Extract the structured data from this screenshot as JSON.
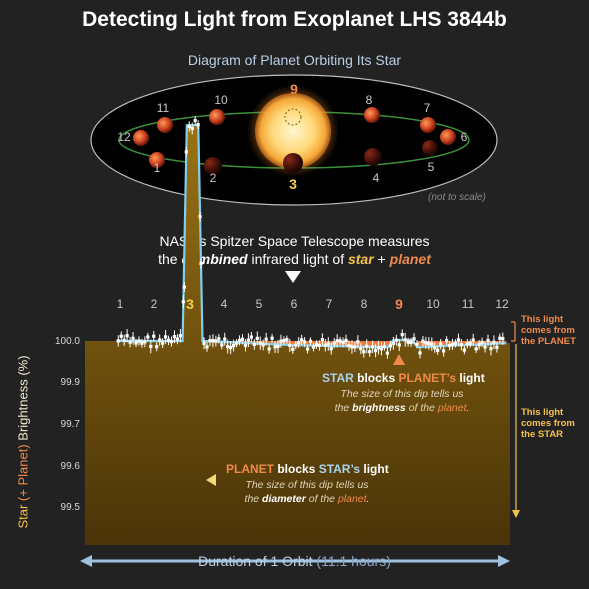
{
  "title": "Detecting Light from Exoplanet LHS 3844b",
  "subtitle": "Diagram of Planet Orbiting Its Star",
  "scale_note": "(not to scale)",
  "orbit_labels": [
    "1",
    "2",
    "3",
    "4",
    "5",
    "6",
    "7",
    "8",
    "9",
    "10",
    "11",
    "12"
  ],
  "spitzer": {
    "line1": "NASA’s Spitzer Space Telescope measures",
    "line2_prefix": "the ",
    "line2_em": "combined",
    "line2_mid": " infrared light of ",
    "line2_star": "star",
    "line2_plus": " + ",
    "line2_planet": "planet"
  },
  "chart": {
    "x_ticks": [
      "1",
      "2",
      "3",
      "4",
      "5",
      "6",
      "7",
      "8",
      "9",
      "10",
      "11",
      "12"
    ],
    "y_ticks": [
      "100.0",
      "99.9",
      "99.7",
      "99.6",
      "99.5"
    ],
    "ylabel_star": "Star ",
    "ylabel_planet": "(+ Planet)",
    "ylabel_rest": " Brightness ",
    "ylabel_unit": "(%)",
    "secondary_eclipse": {
      "head_a": "STAR",
      "head_b": " blocks ",
      "head_c": "PLANET’s",
      "head_d": " light",
      "body1": "The size of this dip tells us",
      "body2_a": "the ",
      "body2_b": "brightness",
      "body2_c": " of the ",
      "body2_d": "planet",
      "body2_e": "."
    },
    "transit": {
      "head_a": "PLANET",
      "head_b": " blocks ",
      "head_c": "STAR’s",
      "head_d": " light",
      "body1": "The size of this dip tells us",
      "body2_a": "the ",
      "body2_b": "diameter",
      "body2_c": " of the ",
      "body2_d": "planet",
      "body2_e": "."
    },
    "side_planet": [
      "This light",
      "comes from",
      "the PLANET"
    ],
    "side_star": [
      "This light",
      "comes from",
      "the STAR"
    ],
    "duration_a": "Duration of 1 Orbit ",
    "duration_b": "(11.1 hours)"
  },
  "chart_data": {
    "type": "line",
    "x": [
      1,
      2,
      3,
      4,
      5,
      6,
      7,
      8,
      9,
      10,
      11,
      12
    ],
    "ylabel": "Star (+ Planet) Brightness (%)",
    "xlabel": "Duration of 1 Orbit (11.1 hours)",
    "y_tick_labels": [
      "100.0",
      "99.9",
      "99.7",
      "99.6",
      "99.5"
    ],
    "model": [
      {
        "x": 0.9,
        "y": 100.0
      },
      {
        "x": 2.8,
        "y": 100.0
      },
      {
        "x": 2.92,
        "y": 99.48
      },
      {
        "x": 3.25,
        "y": 99.48
      },
      {
        "x": 3.37,
        "y": 100.0
      },
      {
        "x": 6.0,
        "y": 100.01
      },
      {
        "x": 8.7,
        "y": 100.015
      },
      {
        "x": 8.85,
        "y": 99.998
      },
      {
        "x": 9.4,
        "y": 99.998
      },
      {
        "x": 9.55,
        "y": 100.015
      },
      {
        "x": 12.1,
        "y": 100.005
      }
    ]
  },
  "colors": {
    "star_fill": "#8a6410",
    "planet_fill": "#f07a3a",
    "model_line": "#7fd0f0",
    "star_text": "#f5c24a",
    "planet_text": "#f08a4b",
    "label_blue": "#b9cfe6"
  }
}
